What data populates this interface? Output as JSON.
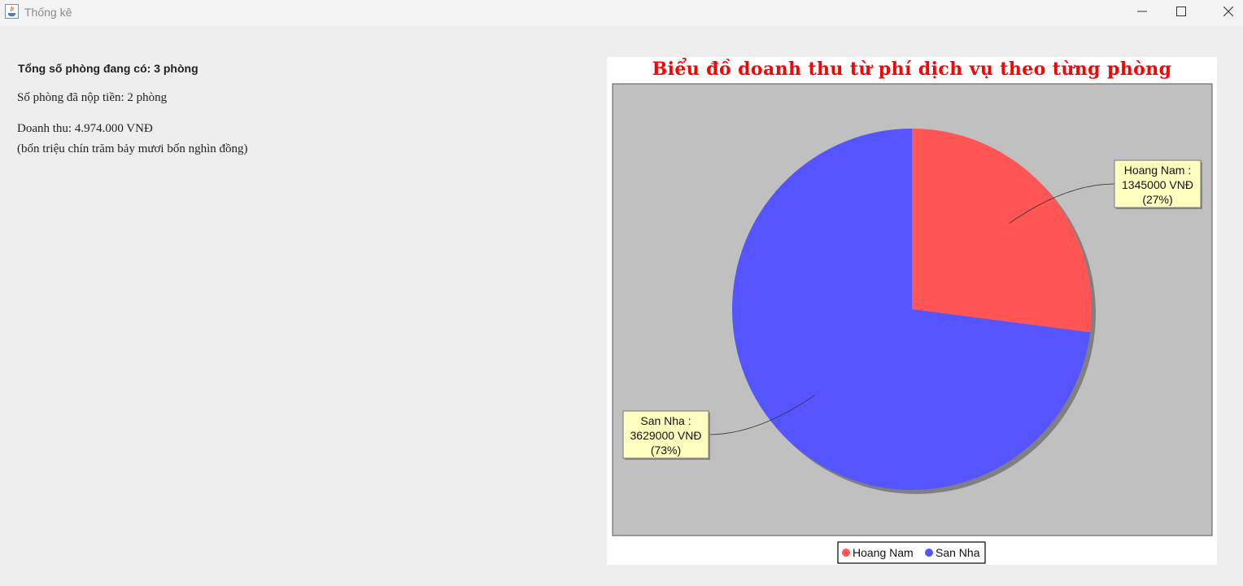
{
  "window": {
    "title": "Thống kê",
    "icons": [
      "java-app-icon",
      "minimize-icon",
      "maximize-icon",
      "close-icon"
    ]
  },
  "stats": {
    "total_rooms": "Tổng số phòng đang có: 3 phòng",
    "paid_rooms": "Số phòng đã nộp tiền: 2 phòng",
    "revenue": "Doanh thu: 4.974.000 VNĐ",
    "revenue_words": "(bốn triệu chín trăm bảy mươi bốn nghìn đồng)"
  },
  "chart_data": {
    "type": "pie",
    "title": "Biểu đồ doanh thu từ phí dịch vụ theo từng phòng",
    "categories": [
      "Hoang Nam",
      "San Nha"
    ],
    "values": [
      1345000,
      3629000
    ],
    "colors": [
      "#ff5555",
      "#5555ff"
    ],
    "labels": [
      [
        "Hoang Nam :",
        "1345000 VNĐ",
        "(27%)"
      ],
      [
        "San Nha :",
        "3629000 VNĐ",
        "(73%)"
      ]
    ],
    "legend_position": "bottom",
    "plot_background": "#c0c0c0",
    "label_background": "#ffffc0"
  }
}
